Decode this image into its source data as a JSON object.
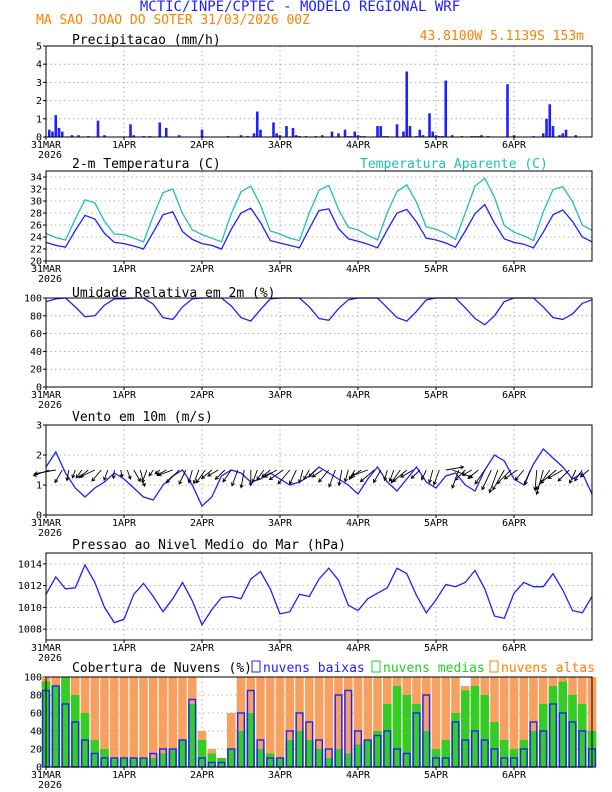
{
  "header": {
    "line1": "MCTIC/INPE/CPTEC - MODELO REGIONAL WRF",
    "location_run": "MA SAO JOAO DO SOTER   31/03/2026 00Z",
    "coords": "43.8100W 5.1139S 153m"
  },
  "colors": {
    "blue": "#2020ff",
    "orange": "#ff8000",
    "cyan": "#20c0b0",
    "green": "#20d020",
    "cloud_orange": "#f8a060"
  },
  "x_axis": {
    "labels": [
      "31MAR",
      "1APR",
      "2APR",
      "3APR",
      "4APR",
      "5APR",
      "6APR"
    ],
    "year": "2026",
    "hours_total": 168,
    "label_hours": [
      0,
      24,
      48,
      72,
      96,
      120,
      144
    ]
  },
  "chart_data": [
    {
      "id": "precip",
      "type": "bar",
      "title": "Precipitacao (mm/h)",
      "ylim": [
        0,
        5
      ],
      "yticks": [
        0,
        1,
        2,
        3,
        4,
        5
      ],
      "x_hours": [
        1,
        2,
        3,
        4,
        5,
        8,
        10,
        13,
        16,
        18,
        26,
        27,
        30,
        32,
        35,
        37,
        41,
        48,
        56,
        60,
        62,
        64,
        65,
        66,
        70,
        71,
        72,
        74,
        76,
        77,
        78,
        80,
        83,
        85,
        88,
        90,
        92,
        93,
        94,
        95,
        96,
        97,
        98,
        102,
        103,
        104,
        105,
        108,
        110,
        111,
        112,
        114,
        115,
        116,
        118,
        119,
        120,
        121,
        122,
        123,
        125,
        128,
        131,
        132,
        133,
        134,
        136,
        142,
        144,
        150,
        153,
        154,
        155,
        156,
        158,
        159,
        160,
        163
      ],
      "values": [
        0.4,
        0.3,
        1.2,
        0.5,
        0.3,
        0.1,
        0.1,
        0.05,
        0.9,
        0.1,
        0.7,
        0.1,
        0.05,
        0.05,
        0.8,
        0.5,
        0.1,
        0.4,
        0.05,
        0.1,
        0.05,
        0.2,
        1.4,
        0.4,
        0.8,
        0.2,
        0.1,
        0.6,
        0.5,
        0.1,
        0.05,
        0.05,
        0.05,
        0.1,
        0.3,
        0.2,
        0.4,
        0.05,
        0.05,
        0.3,
        0.1,
        0.05,
        0.05,
        0.6,
        0.6,
        0.05,
        0.05,
        0.7,
        0.3,
        3.6,
        0.6,
        0.05,
        0.4,
        0.1,
        1.3,
        0.3,
        0.1,
        0.05,
        0.05,
        3.1,
        0.1,
        0.05,
        0.05,
        0.05,
        0.05,
        0.1,
        0.05,
        2.9,
        0.1,
        0.05,
        0.2,
        1.0,
        1.8,
        0.6,
        0.1,
        0.2,
        0.4,
        0.1
      ]
    },
    {
      "id": "temp",
      "type": "line",
      "title": "2-m Temperatura (C)",
      "title2": "Temperatura Aparente (C)",
      "ylim": [
        20,
        35
      ],
      "yticks": [
        20,
        22,
        24,
        26,
        28,
        30,
        32,
        34
      ],
      "x_hours": [
        0,
        3,
        6,
        9,
        12,
        15,
        18,
        21,
        24,
        27,
        30,
        33,
        36,
        39,
        42,
        45,
        48,
        51,
        54,
        57,
        60,
        63,
        66,
        69,
        72,
        75,
        78,
        81,
        84,
        87,
        90,
        93,
        96,
        99,
        102,
        105,
        108,
        111,
        114,
        117,
        120,
        123,
        126,
        129,
        132,
        135,
        138,
        141,
        144,
        147,
        150,
        153,
        156,
        159,
        162,
        165,
        168
      ],
      "series": [
        {
          "name": "Temperatura",
          "values": [
            23.1,
            22.6,
            22.3,
            25.1,
            27.6,
            27.0,
            24.6,
            23.1,
            22.9,
            22.5,
            22.0,
            24.8,
            27.7,
            28.2,
            24.9,
            23.6,
            22.9,
            22.6,
            22.0,
            25.3,
            28.0,
            28.8,
            26.4,
            23.4,
            23.0,
            22.6,
            22.2,
            25.4,
            28.4,
            28.7,
            25.4,
            23.7,
            23.3,
            22.8,
            22.2,
            25.2,
            28.0,
            28.6,
            26.5,
            23.8,
            23.5,
            23.0,
            22.3,
            25.0,
            27.9,
            29.4,
            26.3,
            23.7,
            23.1,
            22.8,
            22.2,
            24.8,
            27.7,
            28.5,
            26.6,
            24.0,
            23.2
          ]
        },
        {
          "name": "Temperatura Aparente",
          "values": [
            24.6,
            23.9,
            23.5,
            27.0,
            30.2,
            29.7,
            26.6,
            24.5,
            24.4,
            23.8,
            23.2,
            27.5,
            31.4,
            32.0,
            27.9,
            25.2,
            24.4,
            23.8,
            23.2,
            27.9,
            31.5,
            32.5,
            29.3,
            25.0,
            24.5,
            23.8,
            23.4,
            28.0,
            31.8,
            32.6,
            28.6,
            25.6,
            25.2,
            24.3,
            23.5,
            28.1,
            31.6,
            32.7,
            29.8,
            25.7,
            25.3,
            24.6,
            23.6,
            28.0,
            32.5,
            33.8,
            30.6,
            25.9,
            24.8,
            24.2,
            23.4,
            28.2,
            31.9,
            32.4,
            29.9,
            26.0,
            25.1
          ]
        }
      ]
    },
    {
      "id": "rh",
      "type": "line",
      "title": "Umidade Relativa em 2m (%)",
      "ylim": [
        0,
        100
      ],
      "yticks": [
        0,
        20,
        40,
        60,
        80,
        100
      ],
      "x_hours": [
        0,
        3,
        6,
        9,
        12,
        15,
        18,
        21,
        24,
        27,
        30,
        33,
        36,
        39,
        42,
        45,
        48,
        51,
        54,
        57,
        60,
        63,
        66,
        69,
        72,
        75,
        78,
        81,
        84,
        87,
        90,
        93,
        96,
        99,
        102,
        105,
        108,
        111,
        114,
        117,
        120,
        123,
        126,
        129,
        132,
        135,
        138,
        141,
        144,
        147,
        150,
        153,
        156,
        159,
        162,
        165,
        168
      ],
      "values": [
        96,
        99,
        100,
        90,
        79,
        80,
        92,
        99,
        99,
        100,
        100,
        93,
        78,
        76,
        90,
        99,
        100,
        100,
        100,
        91,
        78,
        74,
        87,
        99,
        100,
        100,
        100,
        90,
        77,
        75,
        88,
        98,
        100,
        100,
        100,
        89,
        78,
        74,
        85,
        98,
        100,
        100,
        100,
        89,
        77,
        70,
        80,
        96,
        100,
        100,
        100,
        90,
        78,
        76,
        82,
        94,
        98
      ]
    },
    {
      "id": "wind",
      "type": "line",
      "title": "Vento em 10m (m/s)",
      "ylim": [
        0,
        3
      ],
      "yticks": [
        0,
        1,
        2,
        3
      ],
      "x_hours": [
        0,
        3,
        6,
        9,
        12,
        15,
        18,
        21,
        24,
        27,
        30,
        33,
        36,
        39,
        42,
        45,
        48,
        51,
        54,
        57,
        60,
        63,
        66,
        69,
        72,
        75,
        78,
        81,
        84,
        87,
        90,
        93,
        96,
        99,
        102,
        105,
        108,
        111,
        114,
        117,
        120,
        123,
        126,
        129,
        132,
        135,
        138,
        141,
        144,
        147,
        150,
        153,
        156,
        159,
        162,
        165,
        168
      ],
      "values": [
        1.6,
        2.1,
        1.4,
        0.9,
        0.6,
        0.9,
        1.1,
        1.4,
        1.2,
        0.9,
        0.6,
        0.5,
        1.0,
        1.3,
        1.5,
        1.0,
        0.3,
        0.6,
        1.3,
        1.5,
        1.4,
        1.1,
        1.2,
        1.4,
        1.2,
        1.0,
        1.1,
        1.3,
        1.6,
        1.4,
        1.2,
        1.0,
        0.7,
        1.2,
        1.6,
        1.1,
        0.8,
        1.2,
        1.6,
        1.1,
        0.9,
        1.3,
        1.4,
        1.0,
        0.8,
        1.5,
        2.0,
        1.8,
        1.2,
        1.0,
        1.7,
        2.2,
        1.9,
        1.6,
        1.2,
        1.4,
        0.7
      ],
      "arrow_hours": [
        1,
        3,
        5,
        7,
        9,
        11,
        13,
        15,
        17,
        19,
        21,
        23,
        25,
        27,
        29,
        31,
        33,
        35,
        37,
        39,
        41,
        43,
        45,
        47,
        49,
        51,
        53,
        55,
        57,
        59,
        61,
        63,
        65,
        67,
        69,
        71,
        73,
        75,
        77,
        79,
        81,
        83,
        85,
        87,
        89,
        91,
        93,
        95,
        97,
        99,
        101,
        103,
        105,
        107,
        109,
        111,
        113,
        115,
        117,
        119,
        121,
        123,
        125,
        127,
        129,
        131,
        133,
        135,
        137,
        139,
        141,
        143,
        145,
        147,
        149,
        151,
        153,
        155,
        157,
        159,
        161,
        163,
        165,
        167
      ],
      "arrow_dir_deg": [
        250,
        260,
        210,
        190,
        200,
        215,
        230,
        245,
        220,
        200,
        185,
        170,
        160,
        150,
        165,
        200,
        215,
        230,
        240,
        250,
        225,
        205,
        195,
        200,
        215,
        230,
        240,
        225,
        215,
        200,
        190,
        180,
        200,
        215,
        230,
        240,
        235,
        220,
        205,
        195,
        210,
        225,
        235,
        220,
        200,
        190,
        195,
        210,
        235,
        250,
        230,
        210,
        195,
        200,
        215,
        230,
        240,
        225,
        205,
        195,
        200,
        80,
        110,
        200,
        225,
        240,
        230,
        215,
        205,
        200,
        210,
        225,
        235,
        220,
        200,
        185,
        195,
        215,
        230,
        240,
        225,
        205,
        215,
        230
      ],
      "arrow_len_ms": [
        1.4,
        1.8,
        1.2,
        0.9,
        0.7,
        0.8,
        1.0,
        1.3,
        1.2,
        0.9,
        0.7,
        0.6,
        0.8,
        1.1,
        1.4,
        1.1,
        0.6,
        0.5,
        0.9,
        1.3,
        1.5,
        1.3,
        1.1,
        1.2,
        1.3,
        1.1,
        1.0,
        1.1,
        1.2,
        1.4,
        1.5,
        1.3,
        1.1,
        1.0,
        0.9,
        1.2,
        1.4,
        1.5,
        1.3,
        1.1,
        0.9,
        0.8,
        1.0,
        1.3,
        1.5,
        1.3,
        1.0,
        0.9,
        1.1,
        1.4,
        1.5,
        1.2,
        0.9,
        1.0,
        1.3,
        1.5,
        1.2,
        1.0,
        0.9,
        1.1,
        1.3,
        1.5,
        1.8,
        1.6,
        1.2,
        0.9,
        1.1,
        1.4,
        1.8,
        2.0,
        1.9,
        1.6,
        1.3,
        1.1,
        1.3,
        1.7,
        2.1,
        2.0,
        1.7,
        1.4,
        1.3,
        1.2,
        1.1,
        0.9
      ]
    },
    {
      "id": "pressure",
      "type": "line",
      "title": "Pressao ao Nivel Medio do Mar (hPa)",
      "ylim": [
        1007,
        1015
      ],
      "yticks": [
        1008,
        1010,
        1012,
        1014
      ],
      "x_hours": [
        0,
        3,
        6,
        9,
        12,
        15,
        18,
        21,
        24,
        27,
        30,
        33,
        36,
        39,
        42,
        45,
        48,
        51,
        54,
        57,
        60,
        63,
        66,
        69,
        72,
        75,
        78,
        81,
        84,
        87,
        90,
        93,
        96,
        99,
        102,
        105,
        108,
        111,
        114,
        117,
        120,
        123,
        126,
        129,
        132,
        135,
        138,
        141,
        144,
        147,
        150,
        153,
        156,
        159,
        162,
        165,
        168
      ],
      "values": [
        1011.2,
        1012.8,
        1011.7,
        1011.8,
        1013.9,
        1012.3,
        1010.0,
        1008.6,
        1008.9,
        1011.2,
        1012.2,
        1011.0,
        1009.6,
        1010.8,
        1012.3,
        1010.6,
        1008.4,
        1009.8,
        1010.9,
        1011.0,
        1010.8,
        1012.6,
        1013.3,
        1011.7,
        1009.4,
        1009.6,
        1011.2,
        1011.0,
        1012.6,
        1013.6,
        1012.5,
        1010.2,
        1009.7,
        1010.8,
        1011.3,
        1011.8,
        1013.6,
        1013.1,
        1011.1,
        1009.5,
        1010.7,
        1012.1,
        1011.9,
        1012.3,
        1013.4,
        1011.7,
        1009.2,
        1009.0,
        1011.3,
        1012.3,
        1011.9,
        1011.9,
        1013.1,
        1011.6,
        1009.7,
        1009.5,
        1011.0
      ]
    },
    {
      "id": "clouds",
      "type": "bar",
      "title": "Cobertura de Nuvens (%)",
      "legend": [
        "nuvens baixas",
        "nuvens medias",
        "nuvens altas"
      ],
      "ylim": [
        0,
        100
      ],
      "yticks": [
        0,
        20,
        40,
        60,
        80,
        100
      ],
      "x_hours": [
        0,
        3,
        6,
        9,
        12,
        15,
        18,
        21,
        24,
        27,
        30,
        33,
        36,
        39,
        42,
        45,
        48,
        51,
        54,
        57,
        60,
        63,
        66,
        69,
        72,
        75,
        78,
        81,
        84,
        87,
        90,
        93,
        96,
        99,
        102,
        105,
        108,
        111,
        114,
        117,
        120,
        123,
        126,
        129,
        132,
        135,
        138,
        141,
        144,
        147,
        150,
        153,
        156,
        159,
        162,
        165,
        168
      ],
      "series": [
        {
          "name": "nuvens altas",
          "values": [
            100,
            100,
            100,
            100,
            100,
            100,
            100,
            100,
            100,
            100,
            100,
            100,
            100,
            100,
            100,
            100,
            40,
            20,
            10,
            60,
            100,
            100,
            100,
            100,
            100,
            100,
            100,
            100,
            100,
            100,
            100,
            100,
            100,
            100,
            100,
            100,
            100,
            100,
            100,
            100,
            100,
            100,
            100,
            90,
            100,
            100,
            100,
            100,
            100,
            100,
            100,
            100,
            100,
            100,
            100,
            100,
            100
          ]
        },
        {
          "name": "nuvens medias",
          "values": [
            95,
            90,
            100,
            80,
            60,
            30,
            20,
            10,
            10,
            10,
            10,
            10,
            15,
            20,
            30,
            70,
            30,
            15,
            10,
            20,
            40,
            60,
            20,
            15,
            10,
            30,
            40,
            30,
            20,
            10,
            20,
            15,
            25,
            30,
            40,
            70,
            90,
            80,
            70,
            40,
            20,
            30,
            60,
            85,
            90,
            80,
            50,
            30,
            20,
            30,
            40,
            70,
            90,
            95,
            80,
            70,
            40
          ]
        },
        {
          "name": "nuvens baixas",
          "values": [
            85,
            90,
            70,
            50,
            30,
            15,
            10,
            10,
            10,
            10,
            10,
            15,
            20,
            20,
            30,
            75,
            10,
            5,
            5,
            20,
            60,
            85,
            30,
            10,
            10,
            40,
            60,
            50,
            30,
            20,
            80,
            85,
            40,
            30,
            35,
            40,
            20,
            15,
            60,
            80,
            10,
            10,
            50,
            30,
            40,
            30,
            20,
            10,
            10,
            20,
            50,
            40,
            70,
            60,
            50,
            40,
            20
          ]
        }
      ]
    }
  ]
}
